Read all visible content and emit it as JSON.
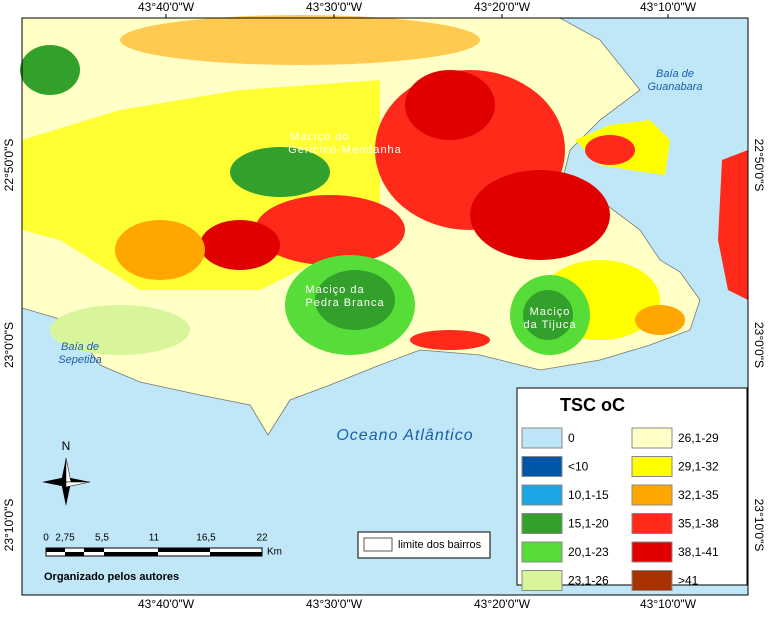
{
  "map": {
    "axis_labels": {
      "top": [
        "43°40'0\"W",
        "43°30'0\"W",
        "43°20'0\"W",
        "43°10'0\"W"
      ],
      "bottom": [
        "43°40'0\"W",
        "43°30'0\"W",
        "43°20'0\"W",
        "43°10'0\"W"
      ],
      "left": [
        "22°50'0\"S",
        "23°0'0\"S",
        "23°10'0\"S"
      ],
      "right": [
        "22°50'0\"S",
        "23°0'0\"S",
        "23°10'0\"S"
      ]
    },
    "places": [
      "Baía de",
      "Guanabara",
      "Baía de",
      "Sepetiba",
      "Oceano Atlântico",
      "Maciço do",
      "Gericinó-Mendanha",
      "Maciço da",
      "Pedra Branca",
      "Maciço",
      "da Tijuca"
    ],
    "legend": {
      "title": "TSC oC",
      "items": [
        {
          "label": "0",
          "color": "#bde7f8"
        },
        {
          "label": "<10",
          "color": "#0057a8"
        },
        {
          "label": "10,1-15",
          "color": "#1aa6e4"
        },
        {
          "label": "15,1-20",
          "color": "#33a02c"
        },
        {
          "label": "20,1-23",
          "color": "#56dd38"
        },
        {
          "label": "23,1-26",
          "color": "#d8f59c"
        },
        {
          "label": "26,1-29",
          "color": "#ffffc6"
        },
        {
          "label": "29,1-32",
          "color": "#ffff00"
        },
        {
          "label": "32,1-35",
          "color": "#ffa600"
        },
        {
          "label": "35,1-38",
          "color": "#ff2a1a"
        },
        {
          "label": "38,1-41",
          "color": "#e00000"
        },
        {
          "label": ">41",
          "color": "#a83200"
        }
      ]
    },
    "scale_bar": {
      "labels": [
        "0",
        "2,75",
        "5,5",
        "11",
        "16,5",
        "22"
      ],
      "unit": "Km"
    },
    "boundary_label": "limite dos bairros",
    "credit": "Organizado pelos autores",
    "north": "N"
  }
}
